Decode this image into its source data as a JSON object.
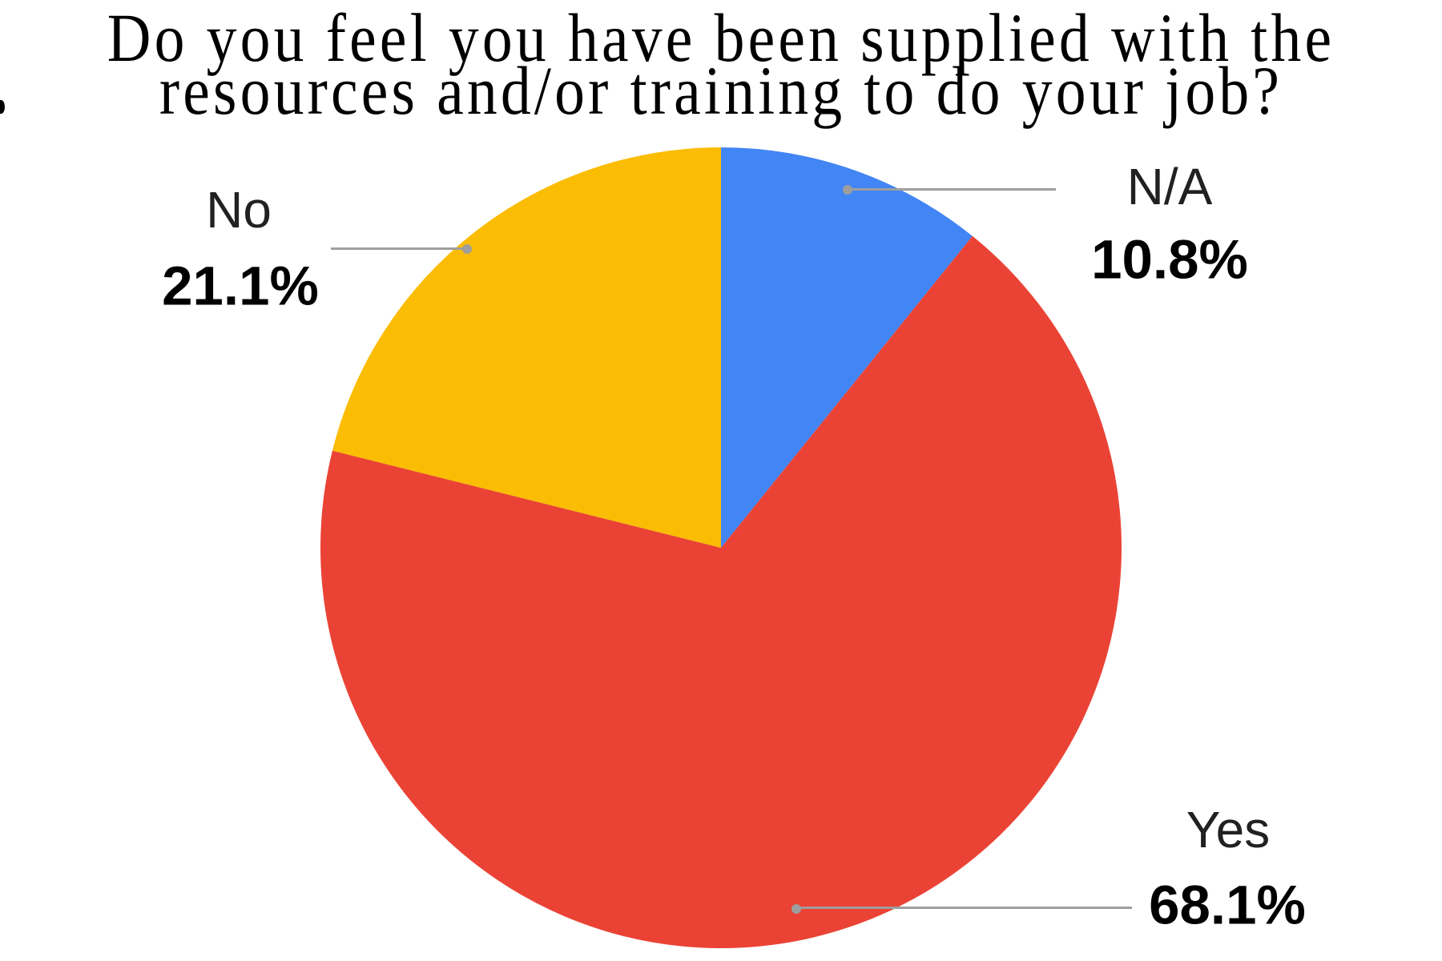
{
  "page": {
    "background": "#ffffff"
  },
  "title": {
    "text": "Do you feel you have been supplied with the resources and/or training to do your job?",
    "lines": [
      "Do you feel you have been supplied with the",
      "resources and/or training to do your job?"
    ]
  },
  "chart_data": {
    "type": "pie",
    "title": "Do you feel you have been supplied with the resources and/or training to do your job?",
    "start_angle_deg": 0,
    "direction": "clockwise",
    "legend_position": "none",
    "label_style": "outside-callout",
    "slices": [
      {
        "label": "N/A",
        "value": 10.8,
        "display": "10.8%",
        "color": "#4285F4"
      },
      {
        "label": "Yes",
        "value": 68.1,
        "display": "68.1%",
        "color": "#EA4335"
      },
      {
        "label": "No",
        "value": 21.1,
        "display": "21.1%",
        "color": "#FBBC04"
      }
    ]
  },
  "colors": {
    "leader_line": "#9e9e9e",
    "title_text": "#000000",
    "label_text": "#212121"
  }
}
